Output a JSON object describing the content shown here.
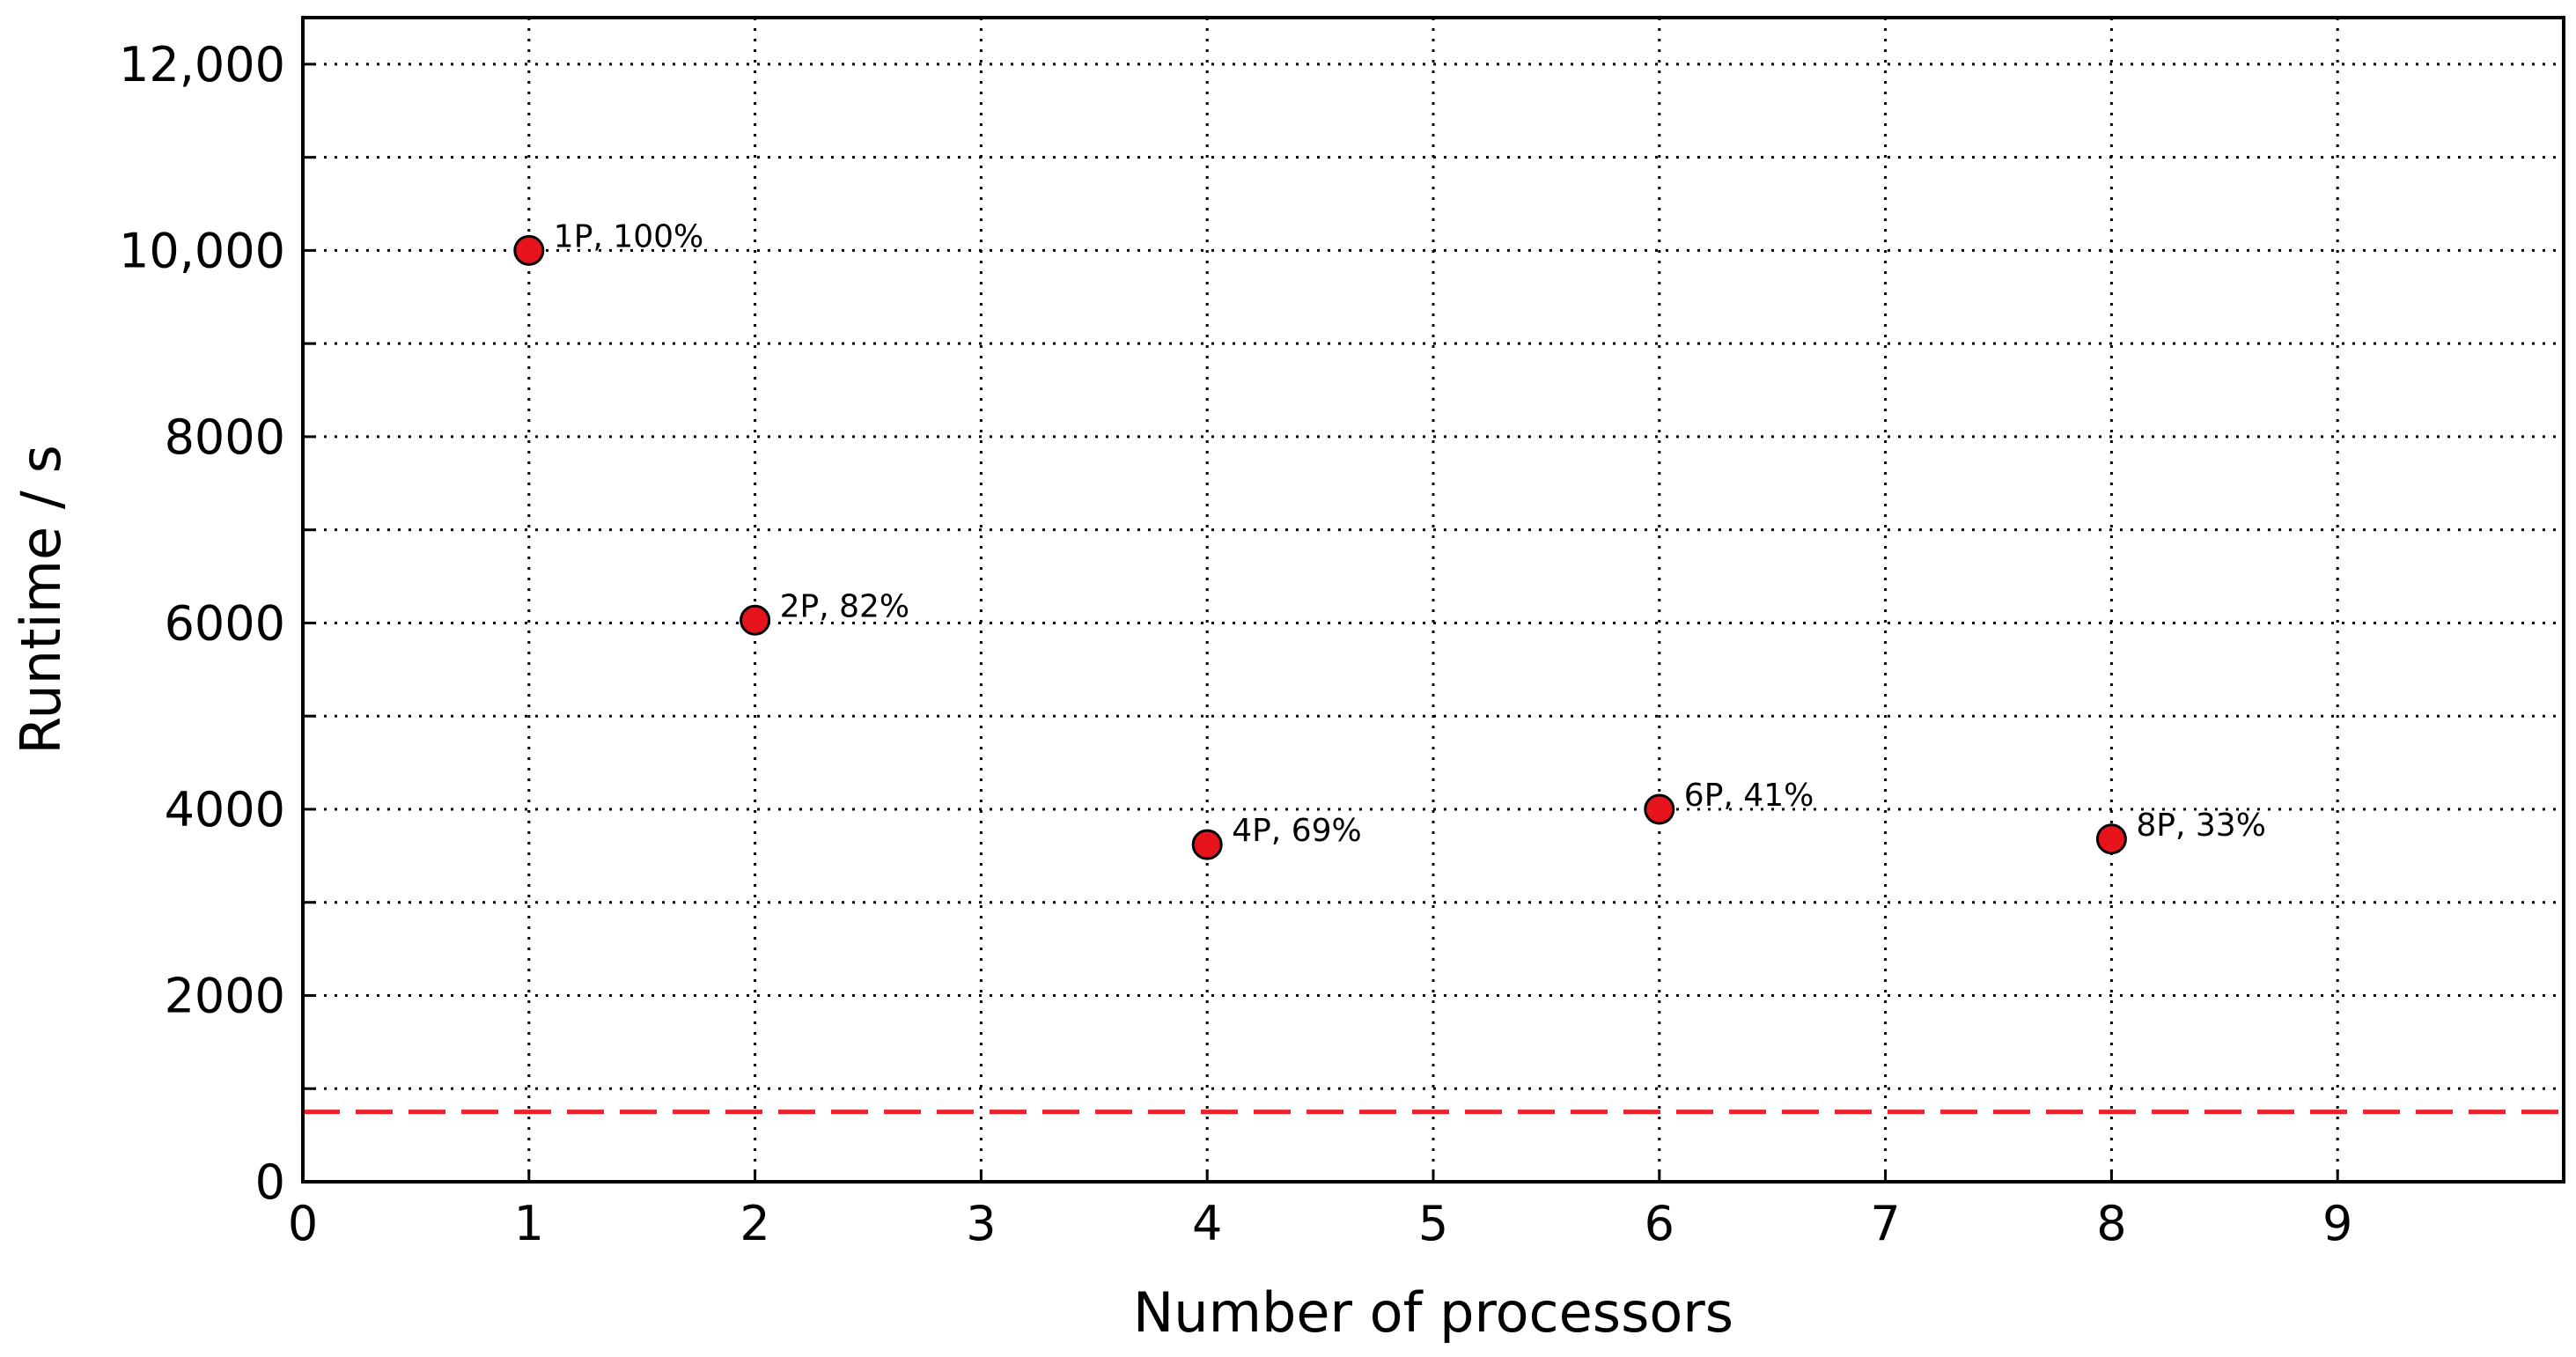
{
  "chart_data": {
    "type": "scatter",
    "title": "",
    "xlabel": "Number of processors",
    "ylabel": "Runtime / s",
    "xlim": [
      0,
      10
    ],
    "ylim": [
      0,
      12500
    ],
    "x_ticks": [
      0,
      1,
      2,
      3,
      4,
      5,
      6,
      7,
      8,
      9
    ],
    "x_tick_labels": [
      "0",
      "1",
      "2",
      "3",
      "4",
      "5",
      "6",
      "7",
      "8",
      "9"
    ],
    "y_ticks": [
      0,
      2000,
      4000,
      6000,
      8000,
      10000,
      12000
    ],
    "y_tick_labels": [
      "0",
      "2000",
      "4000",
      "6000",
      "8000",
      "10,000",
      "12,000"
    ],
    "y_minor_grid": [
      1000,
      3000,
      5000,
      7000,
      9000,
      11000
    ],
    "grid": true,
    "points": [
      {
        "x": 1,
        "y": 10000,
        "label": "1P, 100%"
      },
      {
        "x": 2,
        "y": 6030,
        "label": "2P, 82%"
      },
      {
        "x": 4,
        "y": 3620,
        "label": "4P, 69%"
      },
      {
        "x": 6,
        "y": 4000,
        "label": "6P, 41%"
      },
      {
        "x": 8,
        "y": 3680,
        "label": "8P, 33%"
      }
    ],
    "reference_line": {
      "y": 750,
      "color": "#f0202a",
      "style": "dashed"
    },
    "marker_color": "#e8141b"
  }
}
